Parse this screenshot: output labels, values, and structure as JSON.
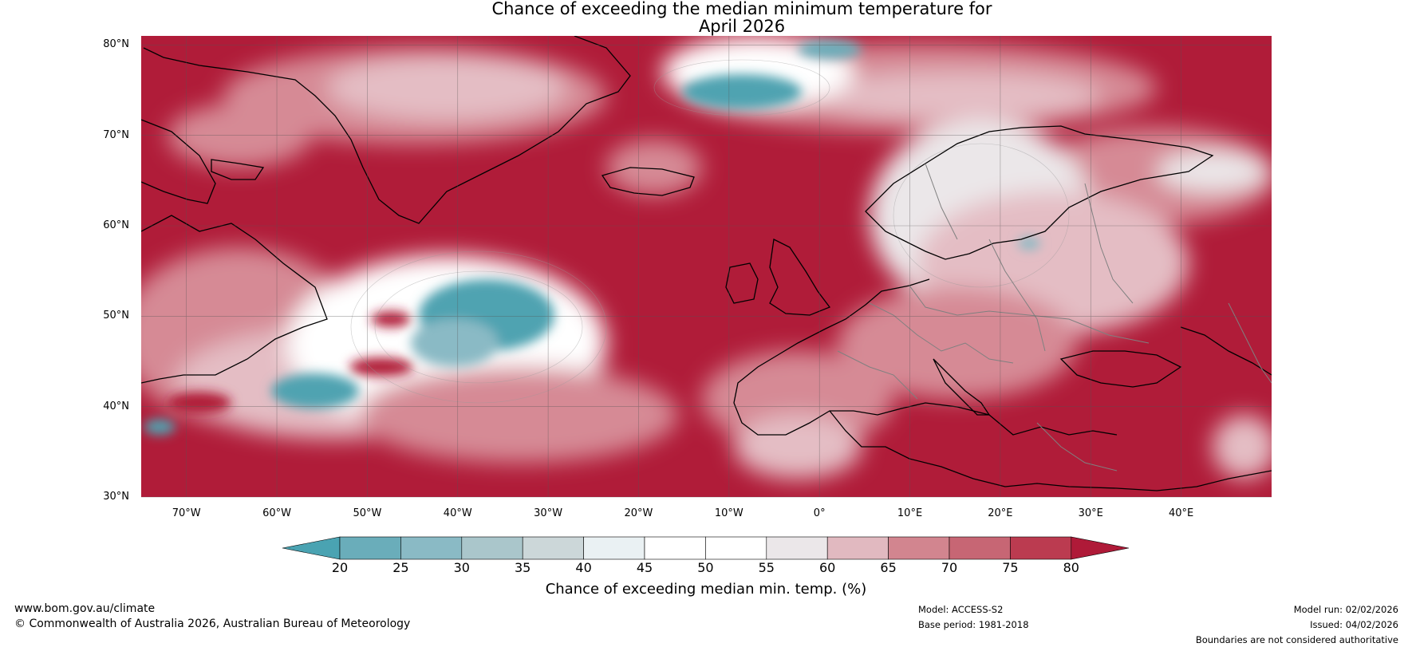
{
  "title": {
    "line1": "Chance of exceeding the median minimum temperature for",
    "line2": "April 2026"
  },
  "map": {
    "lat_labels": [
      "80°N",
      "70°N",
      "60°N",
      "50°N",
      "40°N",
      "30°N"
    ],
    "lat_values": [
      80,
      70,
      60,
      50,
      40,
      30
    ],
    "lon_labels": [
      "70°W",
      "60°W",
      "50°W",
      "40°W",
      "30°W",
      "20°W",
      "10°W",
      "0°",
      "10°E",
      "20°E",
      "30°E",
      "40°E"
    ],
    "lon_values": [
      -70,
      -60,
      -50,
      -40,
      -30,
      -20,
      -10,
      0,
      10,
      20,
      30,
      40
    ],
    "lon_range": [
      -75,
      50
    ],
    "lat_range": [
      30,
      81
    ]
  },
  "colorbar": {
    "ticks": [
      "20",
      "25",
      "30",
      "35",
      "40",
      "45",
      "50",
      "55",
      "60",
      "65",
      "70",
      "75",
      "80"
    ],
    "colors": [
      "#4aa3b2",
      "#6aadba",
      "#8abac5",
      "#aac6cb",
      "#ccd7d9",
      "#eaf1f3",
      "#ffffff",
      "#ffffff",
      "#ebe7e9",
      "#e1b9c0",
      "#d2858f",
      "#c76674",
      "#bb3b50",
      "#af1a38"
    ],
    "label": "Chance of exceeding median min. temp. (%)"
  },
  "footer": {
    "url": "www.bom.gov.au/climate",
    "copyright": "© Commonwealth of Australia 2026, Australian Bureau of Meteorology",
    "model": "Model: ACCESS-S2",
    "base_period": "Base period: 1981-2018",
    "model_run": "Model run: 02/02/2026",
    "issued": "Issued: 04/02/2026",
    "disclaimer": "Boundaries are not considered authoritative"
  }
}
